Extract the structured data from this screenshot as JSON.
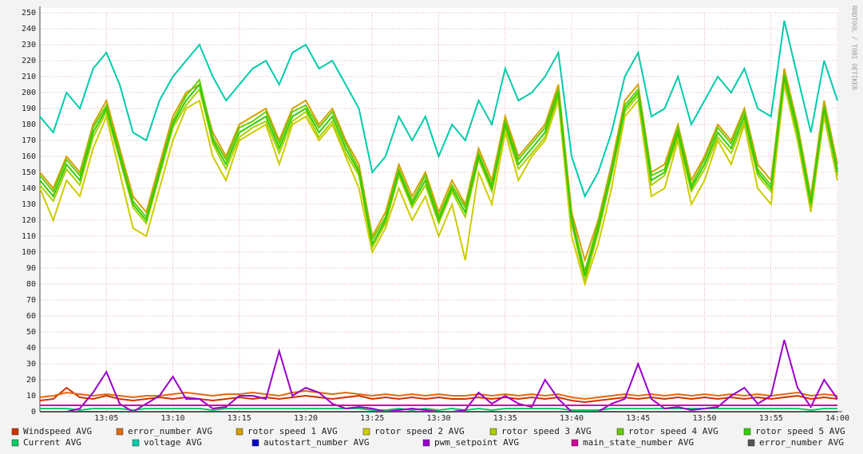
{
  "chart_data": {
    "type": "line",
    "side_label": "RRDTOOL / TOBI OETIKER",
    "x": [
      "13:00",
      "13:01",
      "13:02",
      "13:03",
      "13:04",
      "13:05",
      "13:06",
      "13:07",
      "13:08",
      "13:09",
      "13:10",
      "13:11",
      "13:12",
      "13:13",
      "13:14",
      "13:15",
      "13:16",
      "13:17",
      "13:18",
      "13:19",
      "13:20",
      "13:21",
      "13:22",
      "13:23",
      "13:24",
      "13:25",
      "13:26",
      "13:27",
      "13:28",
      "13:29",
      "13:30",
      "13:31",
      "13:32",
      "13:33",
      "13:34",
      "13:35",
      "13:36",
      "13:37",
      "13:38",
      "13:39",
      "13:40",
      "13:41",
      "13:42",
      "13:43",
      "13:44",
      "13:45",
      "13:46",
      "13:47",
      "13:48",
      "13:49",
      "13:50",
      "13:51",
      "13:52",
      "13:53",
      "13:54",
      "13:55",
      "13:56",
      "13:57",
      "13:58",
      "13:59",
      "14:00"
    ],
    "xlim": [
      "13:00",
      "14:00"
    ],
    "xticks": [
      "13:05",
      "13:10",
      "13:15",
      "13:20",
      "13:25",
      "13:30",
      "13:35",
      "13:40",
      "13:45",
      "13:50",
      "13:55",
      "14:00"
    ],
    "ylim": [
      0,
      250
    ],
    "yticks": [
      0,
      10,
      20,
      30,
      40,
      50,
      60,
      70,
      80,
      90,
      100,
      110,
      120,
      130,
      140,
      150,
      160,
      170,
      180,
      190,
      200,
      210,
      220,
      230,
      240,
      250
    ],
    "grid": true,
    "series": [
      {
        "name": "Windspeed AVG",
        "color": "#cc3300",
        "values": [
          7,
          8,
          15,
          9,
          8,
          10,
          8,
          7,
          8,
          9,
          8,
          9,
          8,
          7,
          8,
          9,
          8,
          9,
          8,
          9,
          10,
          9,
          8,
          9,
          10,
          8,
          9,
          8,
          9,
          8,
          9,
          8,
          8,
          9,
          8,
          9,
          8,
          9,
          8,
          9,
          7,
          6,
          7,
          8,
          9,
          8,
          9,
          8,
          9,
          8,
          9,
          8,
          9,
          8,
          9,
          8,
          9,
          10,
          8,
          9,
          8
        ]
      },
      {
        "name": "error_number AVG",
        "color": "#e06a10",
        "values": [
          9,
          10,
          12,
          11,
          10,
          11,
          10,
          9,
          10,
          10,
          11,
          12,
          11,
          10,
          11,
          11,
          12,
          11,
          10,
          12,
          13,
          12,
          11,
          12,
          11,
          10,
          11,
          10,
          11,
          10,
          11,
          10,
          10,
          11,
          10,
          11,
          10,
          11,
          10,
          11,
          9,
          8,
          9,
          10,
          11,
          10,
          11,
          10,
          11,
          10,
          11,
          10,
          11,
          10,
          11,
          10,
          11,
          12,
          10,
          11,
          10
        ]
      },
      {
        "name": "rotor speed 1 AVG",
        "color": "#d4a000",
        "values": [
          150,
          140,
          160,
          150,
          180,
          195,
          165,
          135,
          125,
          155,
          185,
          200,
          205,
          175,
          160,
          180,
          185,
          190,
          170,
          190,
          195,
          180,
          190,
          170,
          155,
          110,
          125,
          155,
          135,
          150,
          125,
          145,
          130,
          165,
          145,
          185,
          160,
          170,
          180,
          205,
          125,
          95,
          120,
          155,
          195,
          205,
          150,
          155,
          180,
          145,
          160,
          180,
          170,
          190,
          155,
          145,
          215,
          180,
          135,
          195,
          155
        ]
      },
      {
        "name": "rotor speed 2 AVG",
        "color": "#cccc00",
        "values": [
          140,
          120,
          145,
          135,
          165,
          185,
          150,
          115,
          110,
          140,
          170,
          190,
          195,
          160,
          145,
          170,
          175,
          180,
          155,
          180,
          185,
          170,
          180,
          160,
          140,
          100,
          115,
          140,
          120,
          135,
          110,
          130,
          95,
          150,
          130,
          175,
          145,
          160,
          170,
          195,
          110,
          80,
          105,
          140,
          185,
          195,
          135,
          140,
          170,
          130,
          145,
          170,
          155,
          180,
          140,
          130,
          205,
          170,
          125,
          185,
          145
        ]
      },
      {
        "name": "rotor speed 3 AVG",
        "color": "#a8d000",
        "values": [
          142,
          132,
          152,
          142,
          172,
          188,
          158,
          128,
          118,
          148,
          178,
          192,
          202,
          168,
          152,
          172,
          178,
          182,
          162,
          182,
          188,
          172,
          182,
          162,
          148,
          103,
          118,
          148,
          128,
          142,
          118,
          138,
          122,
          158,
          138,
          178,
          152,
          162,
          172,
          198,
          118,
          82,
          112,
          148,
          188,
          198,
          142,
          148,
          172,
          138,
          152,
          172,
          162,
          182,
          148,
          138,
          208,
          172,
          128,
          188,
          148
        ]
      },
      {
        "name": "rotor speed 4 AVG",
        "color": "#66cc00",
        "values": [
          148,
          138,
          158,
          148,
          178,
          192,
          162,
          132,
          122,
          152,
          182,
          198,
          208,
          172,
          158,
          178,
          182,
          188,
          168,
          188,
          192,
          178,
          188,
          168,
          152,
          108,
          122,
          152,
          132,
          148,
          122,
          142,
          128,
          162,
          142,
          182,
          158,
          168,
          178,
          202,
          122,
          88,
          118,
          152,
          192,
          202,
          148,
          152,
          178,
          142,
          158,
          178,
          168,
          188,
          152,
          142,
          212,
          178,
          132,
          192,
          152
        ]
      },
      {
        "name": "rotor speed 5 AVG",
        "color": "#33cc00",
        "values": [
          145,
          135,
          155,
          145,
          175,
          190,
          160,
          130,
          120,
          150,
          180,
          195,
          205,
          170,
          155,
          175,
          180,
          185,
          165,
          185,
          190,
          175,
          185,
          165,
          150,
          105,
          120,
          150,
          130,
          145,
          120,
          140,
          125,
          160,
          140,
          180,
          155,
          165,
          175,
          200,
          120,
          85,
          115,
          150,
          190,
          200,
          145,
          150,
          175,
          140,
          155,
          175,
          165,
          185,
          150,
          140,
          210,
          175,
          130,
          190,
          150
        ]
      },
      {
        "name": "Current AVG",
        "color": "#00cc66",
        "values": [
          2,
          2,
          2,
          1,
          2,
          2,
          2,
          1,
          2,
          2,
          2,
          2,
          2,
          1,
          2,
          2,
          2,
          2,
          2,
          2,
          2,
          2,
          2,
          2,
          2,
          1,
          1,
          2,
          1,
          2,
          1,
          2,
          1,
          2,
          1,
          2,
          2,
          2,
          2,
          2,
          1,
          1,
          1,
          2,
          2,
          2,
          2,
          2,
          2,
          2,
          2,
          2,
          2,
          2,
          2,
          2,
          2,
          2,
          1,
          2,
          2
        ]
      },
      {
        "name": "voltage AVG",
        "color": "#00ccaa",
        "values": [
          185,
          175,
          200,
          190,
          215,
          225,
          205,
          175,
          170,
          195,
          210,
          220,
          230,
          210,
          195,
          205,
          215,
          220,
          205,
          225,
          230,
          215,
          220,
          205,
          190,
          150,
          160,
          185,
          170,
          185,
          160,
          180,
          170,
          195,
          180,
          215,
          195,
          200,
          210,
          225,
          160,
          135,
          150,
          175,
          210,
          225,
          185,
          190,
          210,
          180,
          195,
          210,
          200,
          215,
          190,
          185,
          245,
          210,
          175,
          220,
          195
        ]
      },
      {
        "name": "autostart_number AVG",
        "color": "#0000cc",
        "values": [
          0,
          0,
          0,
          0,
          0,
          0,
          0,
          0,
          0,
          0,
          0,
          0,
          0,
          0,
          0,
          0,
          0,
          0,
          0,
          0,
          0,
          0,
          0,
          0,
          0,
          0,
          0,
          0,
          0,
          0,
          0,
          0,
          0,
          0,
          0,
          0,
          0,
          0,
          0,
          0,
          0,
          0,
          0,
          0,
          0,
          0,
          0,
          0,
          0,
          0,
          0,
          0,
          0,
          0,
          0,
          0,
          0,
          0,
          0,
          0,
          0
        ]
      },
      {
        "name": "pwm_setpoint AVG",
        "color": "#9900cc",
        "values": [
          0,
          0,
          0,
          2,
          12,
          25,
          5,
          0,
          5,
          10,
          22,
          8,
          8,
          2,
          3,
          10,
          10,
          8,
          38,
          10,
          15,
          12,
          5,
          2,
          3,
          2,
          0,
          1,
          2,
          1,
          0,
          0,
          1,
          12,
          5,
          10,
          5,
          3,
          20,
          8,
          0,
          0,
          0,
          5,
          8,
          30,
          8,
          2,
          3,
          1,
          2,
          3,
          10,
          15,
          5,
          10,
          45,
          15,
          3,
          20,
          8
        ]
      },
      {
        "name": "main_state_number AVG",
        "color": "#cc0099",
        "values": [
          4,
          4,
          4,
          4,
          4,
          4,
          4,
          4,
          4,
          4,
          4,
          4,
          4,
          4,
          4,
          4,
          4,
          4,
          4,
          4,
          4,
          4,
          4,
          4,
          4,
          4,
          4,
          4,
          4,
          4,
          4,
          4,
          4,
          4,
          4,
          4,
          4,
          4,
          4,
          4,
          4,
          4,
          4,
          4,
          4,
          4,
          4,
          4,
          4,
          4,
          4,
          4,
          4,
          4,
          4,
          4,
          4,
          4,
          4,
          4,
          4
        ]
      },
      {
        "name": "error_number AVG",
        "color": "#555555",
        "values": [
          0,
          0,
          0,
          0,
          0,
          0,
          0,
          0,
          0,
          0,
          0,
          0,
          0,
          0,
          0,
          0,
          0,
          0,
          0,
          0,
          0,
          0,
          0,
          0,
          0,
          0,
          0,
          0,
          0,
          0,
          0,
          0,
          0,
          0,
          0,
          0,
          0,
          0,
          0,
          0,
          0,
          0,
          0,
          0,
          0,
          0,
          0,
          0,
          0,
          0,
          0,
          0,
          0,
          0,
          0,
          0,
          0,
          0,
          0,
          0,
          0
        ]
      }
    ]
  }
}
